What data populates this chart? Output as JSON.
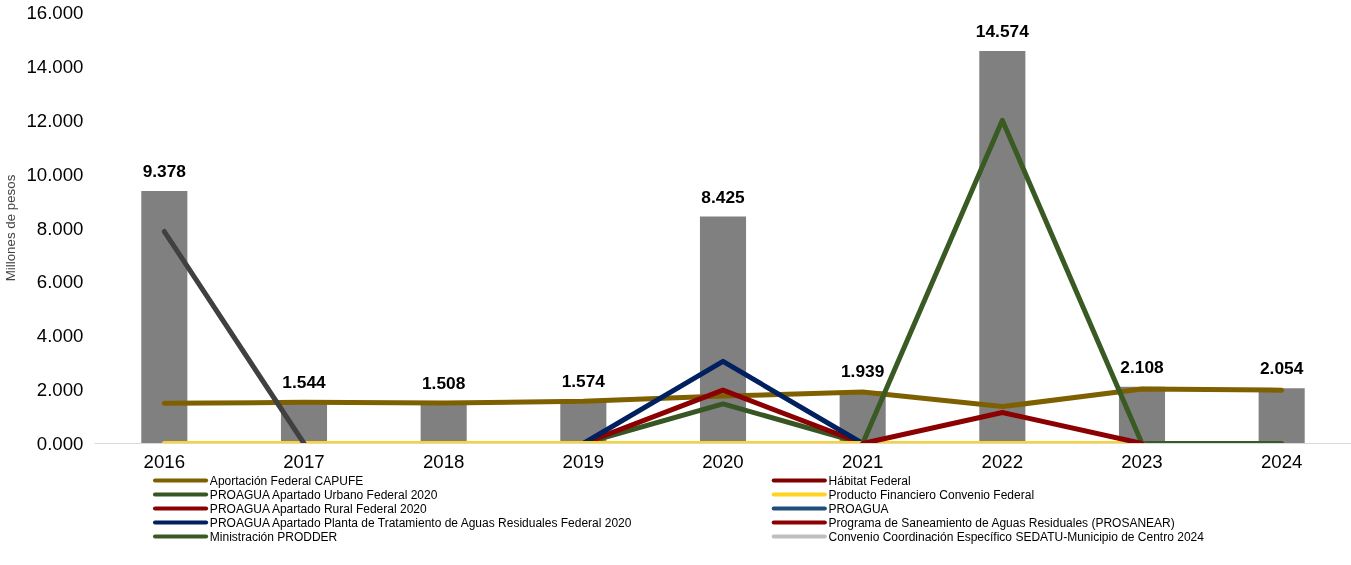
{
  "chart_data": {
    "type": "bar",
    "ylabel": "Millones de pesos",
    "categories": [
      "2016",
      "2017",
      "2018",
      "2019",
      "2020",
      "2021",
      "2022",
      "2023",
      "2024"
    ],
    "values": [
      9.378,
      1.544,
      1.508,
      1.574,
      8.425,
      1.939,
      14.574,
      2.108,
      2.054
    ],
    "color": "#808080",
    "value_labels": [
      "9.378",
      "1.544",
      "1.508",
      "1.574",
      "8.425",
      "1.939",
      "14.574",
      "2.108",
      "2.054"
    ],
    "ylim": [
      0,
      16
    ],
    "yticks": [
      {
        "value": 0,
        "label": "0.000"
      },
      {
        "value": 2,
        "label": "2.000"
      },
      {
        "value": 4,
        "label": "4.000"
      },
      {
        "value": 6,
        "label": "6.000"
      },
      {
        "value": 8,
        "label": "8.000"
      },
      {
        "value": 10,
        "label": "10.000"
      },
      {
        "value": 12,
        "label": "12.000"
      },
      {
        "value": 14,
        "label": "14.000"
      },
      {
        "value": 16,
        "label": "16.000"
      }
    ],
    "grid": false,
    "legend": "bottom",
    "series": [
      {
        "type": "line",
        "name": "Aportación Federal CAPUFE",
        "color": "#7f6000",
        "values": [
          1.49,
          1.53,
          1.5,
          1.57,
          1.76,
          1.91,
          1.37,
          2.02,
          1.98
        ]
      },
      {
        "type": "line",
        "name": "PROAGUA Apartado Urbano Federal 2020",
        "color": "#375623",
        "values": [
          null,
          null,
          null,
          0,
          1.47,
          0,
          null,
          null,
          null
        ]
      },
      {
        "type": "line",
        "name": "PROAGUA Apartado Rural Federal 2020",
        "color": "#8b0000",
        "values": [
          null,
          null,
          null,
          0,
          1.98,
          0,
          null,
          null,
          null
        ]
      },
      {
        "type": "line",
        "name": "PROAGUA Apartado Planta de Tratamiento de Aguas Residuales Federal 2020",
        "color": "#002060",
        "values": [
          null,
          null,
          null,
          0,
          3.05,
          0,
          null,
          null,
          null
        ]
      },
      {
        "type": "line",
        "name": "Ministración PRODDER",
        "color": "#3a5a24",
        "values": [
          null,
          null,
          null,
          null,
          null,
          0,
          12.0,
          0,
          0
        ]
      },
      {
        "type": "line",
        "name": "Hábitat Federal",
        "color": "#800000",
        "values": [
          null,
          null,
          null,
          null,
          null,
          null,
          null,
          null,
          null
        ]
      },
      {
        "type": "line",
        "name": "Producto Financiero Convenio Federal",
        "color": "#ffd320",
        "values": [
          0,
          0,
          0,
          0,
          0,
          0,
          0,
          0,
          null
        ]
      },
      {
        "type": "line",
        "name": "PROAGUA",
        "color": "#1f4e79",
        "values": [
          null,
          null,
          null,
          null,
          null,
          null,
          null,
          null,
          null
        ]
      },
      {
        "type": "line",
        "name": "Programa de Saneamiento de Aguas Residuales (PROSANEAR)",
        "color": "#8b0000",
        "values": [
          null,
          null,
          null,
          null,
          null,
          0,
          1.15,
          0,
          null
        ]
      },
      {
        "type": "line",
        "name": "Convenio Coordinación Específico SEDATU-Municipio de Centro 2024",
        "color": "#bfbfbf",
        "values": [
          null,
          null,
          null,
          null,
          null,
          null,
          null,
          null,
          null
        ]
      },
      {
        "type": "line",
        "color": "#404040",
        "values": [
          7.87,
          0,
          null,
          null,
          null,
          null,
          null,
          null,
          null
        ]
      }
    ]
  }
}
